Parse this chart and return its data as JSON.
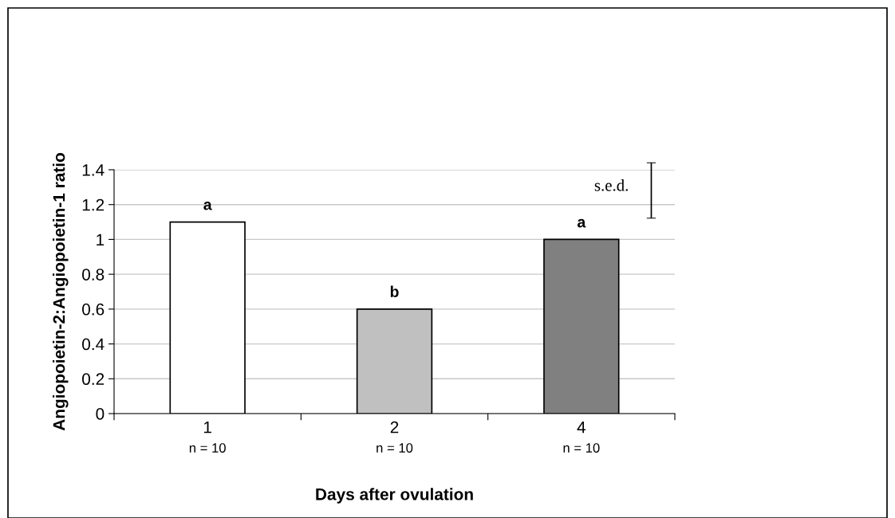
{
  "chart_data": {
    "type": "bar",
    "xlabel": "Days after ovulation",
    "ylabel": "Angiopoietin-2:Angiopoietin-1 ratio",
    "categories": [
      "1",
      "2",
      "4"
    ],
    "values": [
      1.1,
      0.6,
      1.0
    ],
    "colors": [
      "#ffffff",
      "#c0c0c0",
      "#808080"
    ],
    "value_labels": [
      "a",
      "b",
      "a"
    ],
    "ylim": [
      0,
      1.4
    ],
    "yticks": [
      0,
      0.2,
      0.4,
      0.6,
      0.8,
      1,
      1.2,
      1.4
    ],
    "grid": "y",
    "legend": false,
    "annotations": [
      "n = 10",
      "n = 10",
      "n = 10",
      "s.e.d."
    ]
  }
}
